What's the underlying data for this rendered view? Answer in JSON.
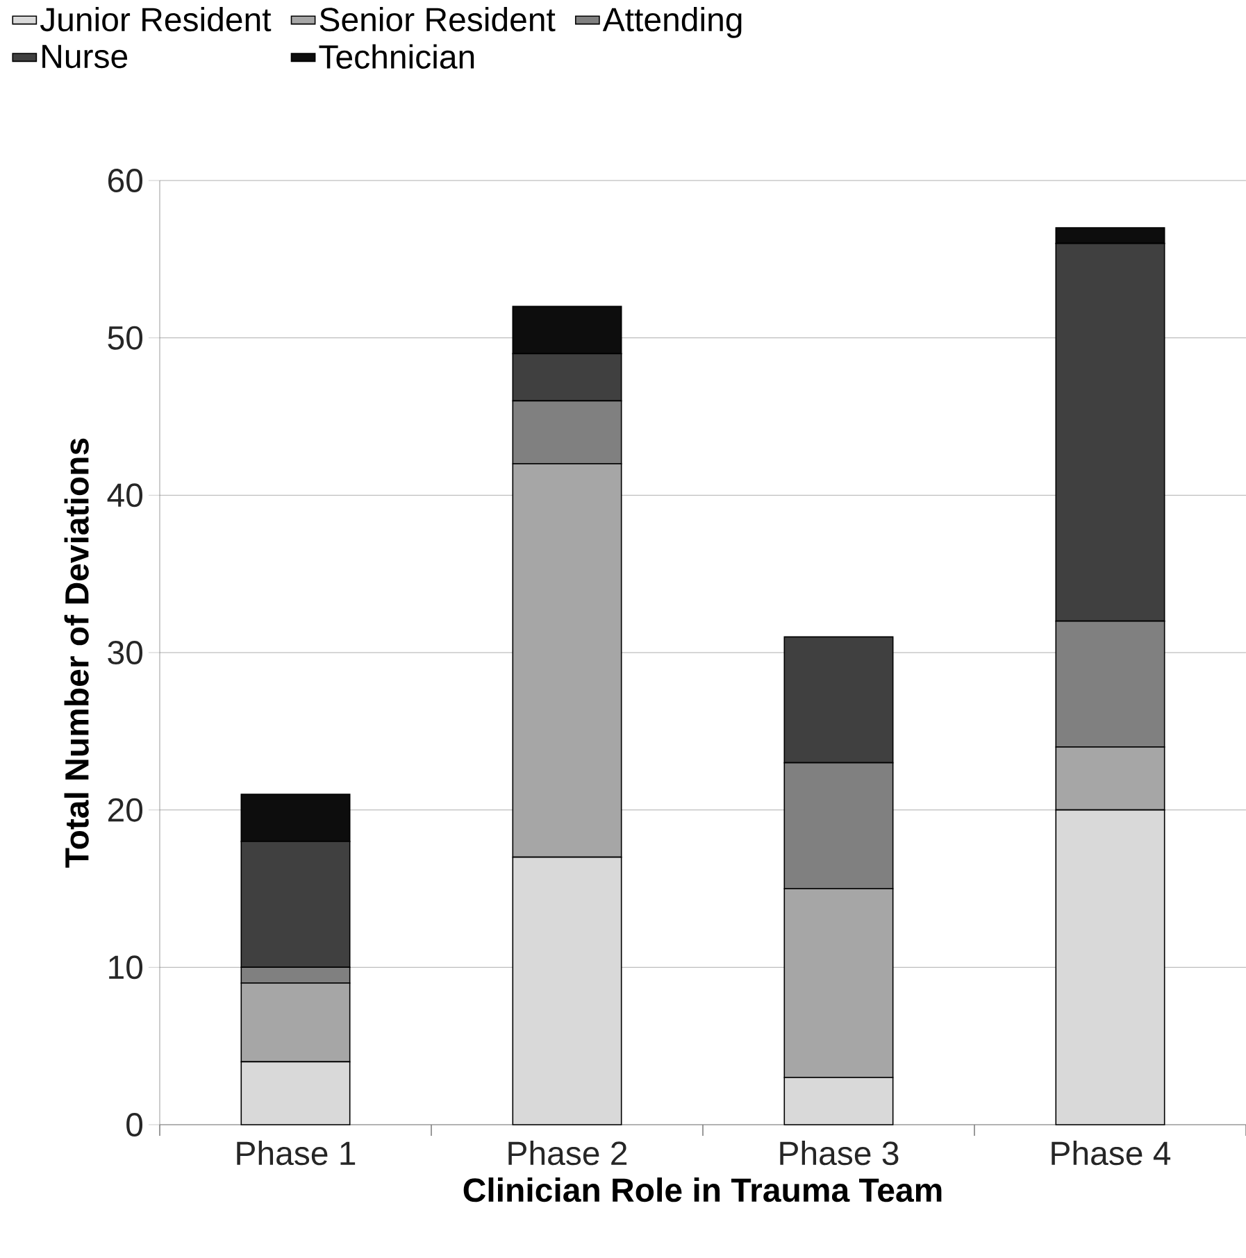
{
  "chart_data": {
    "type": "bar",
    "stacked": true,
    "xlabel": "Clinician Role in Trauma Team",
    "ylabel": "Total Number of Deviations",
    "categories": [
      "Phase 1",
      "Phase 2",
      "Phase 3",
      "Phase 4"
    ],
    "series": [
      {
        "name": "Junior Resident",
        "color": "#d9d9d9",
        "values": [
          4,
          17,
          3,
          20
        ]
      },
      {
        "name": "Senior Resident",
        "color": "#a6a6a6",
        "values": [
          5,
          25,
          12,
          4
        ]
      },
      {
        "name": "Attending",
        "color": "#808080",
        "values": [
          1,
          4,
          8,
          8
        ]
      },
      {
        "name": "Nurse",
        "color": "#404040",
        "values": [
          8,
          3,
          8,
          24
        ]
      },
      {
        "name": "Technician",
        "color": "#0d0d0d",
        "values": [
          3,
          3,
          0,
          1
        ]
      }
    ],
    "ylim": [
      0,
      60
    ],
    "yticks": [
      0,
      10,
      20,
      30,
      40,
      50,
      60
    ],
    "grid": "y",
    "legend": "top"
  }
}
